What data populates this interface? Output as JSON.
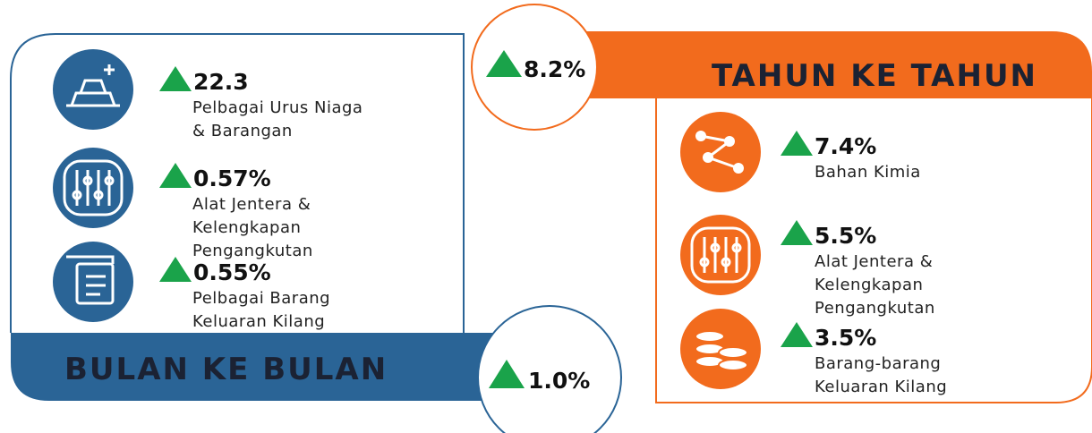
{
  "month_on_month": {
    "title": "BULAN KE BULAN",
    "value": "1.0%",
    "items": [
      {
        "value": "22.3",
        "lines": [
          "Pelbagai Urus Niaga",
          "& Barangan"
        ]
      },
      {
        "value": "0.57%",
        "lines": [
          "Alat Jentera &",
          "Kelengkapan",
          "Pengangkutan"
        ]
      },
      {
        "value": "0.55%",
        "lines": [
          "Pelbagai Barang",
          "Keluaran Kilang"
        ]
      }
    ]
  },
  "year_on_year": {
    "title": "TAHUN KE TAHUN",
    "value": "8.2%",
    "items": [
      {
        "value": "7.4%",
        "lines": [
          "Bahan Kimia"
        ]
      },
      {
        "value": "5.5%",
        "lines": [
          "Alat Jentera &",
          "Kelengkapan",
          "Pengangkutan"
        ]
      },
      {
        "value": "3.5%",
        "lines": [
          "Barang-barang",
          "Keluaran Kilang"
        ]
      }
    ]
  }
}
